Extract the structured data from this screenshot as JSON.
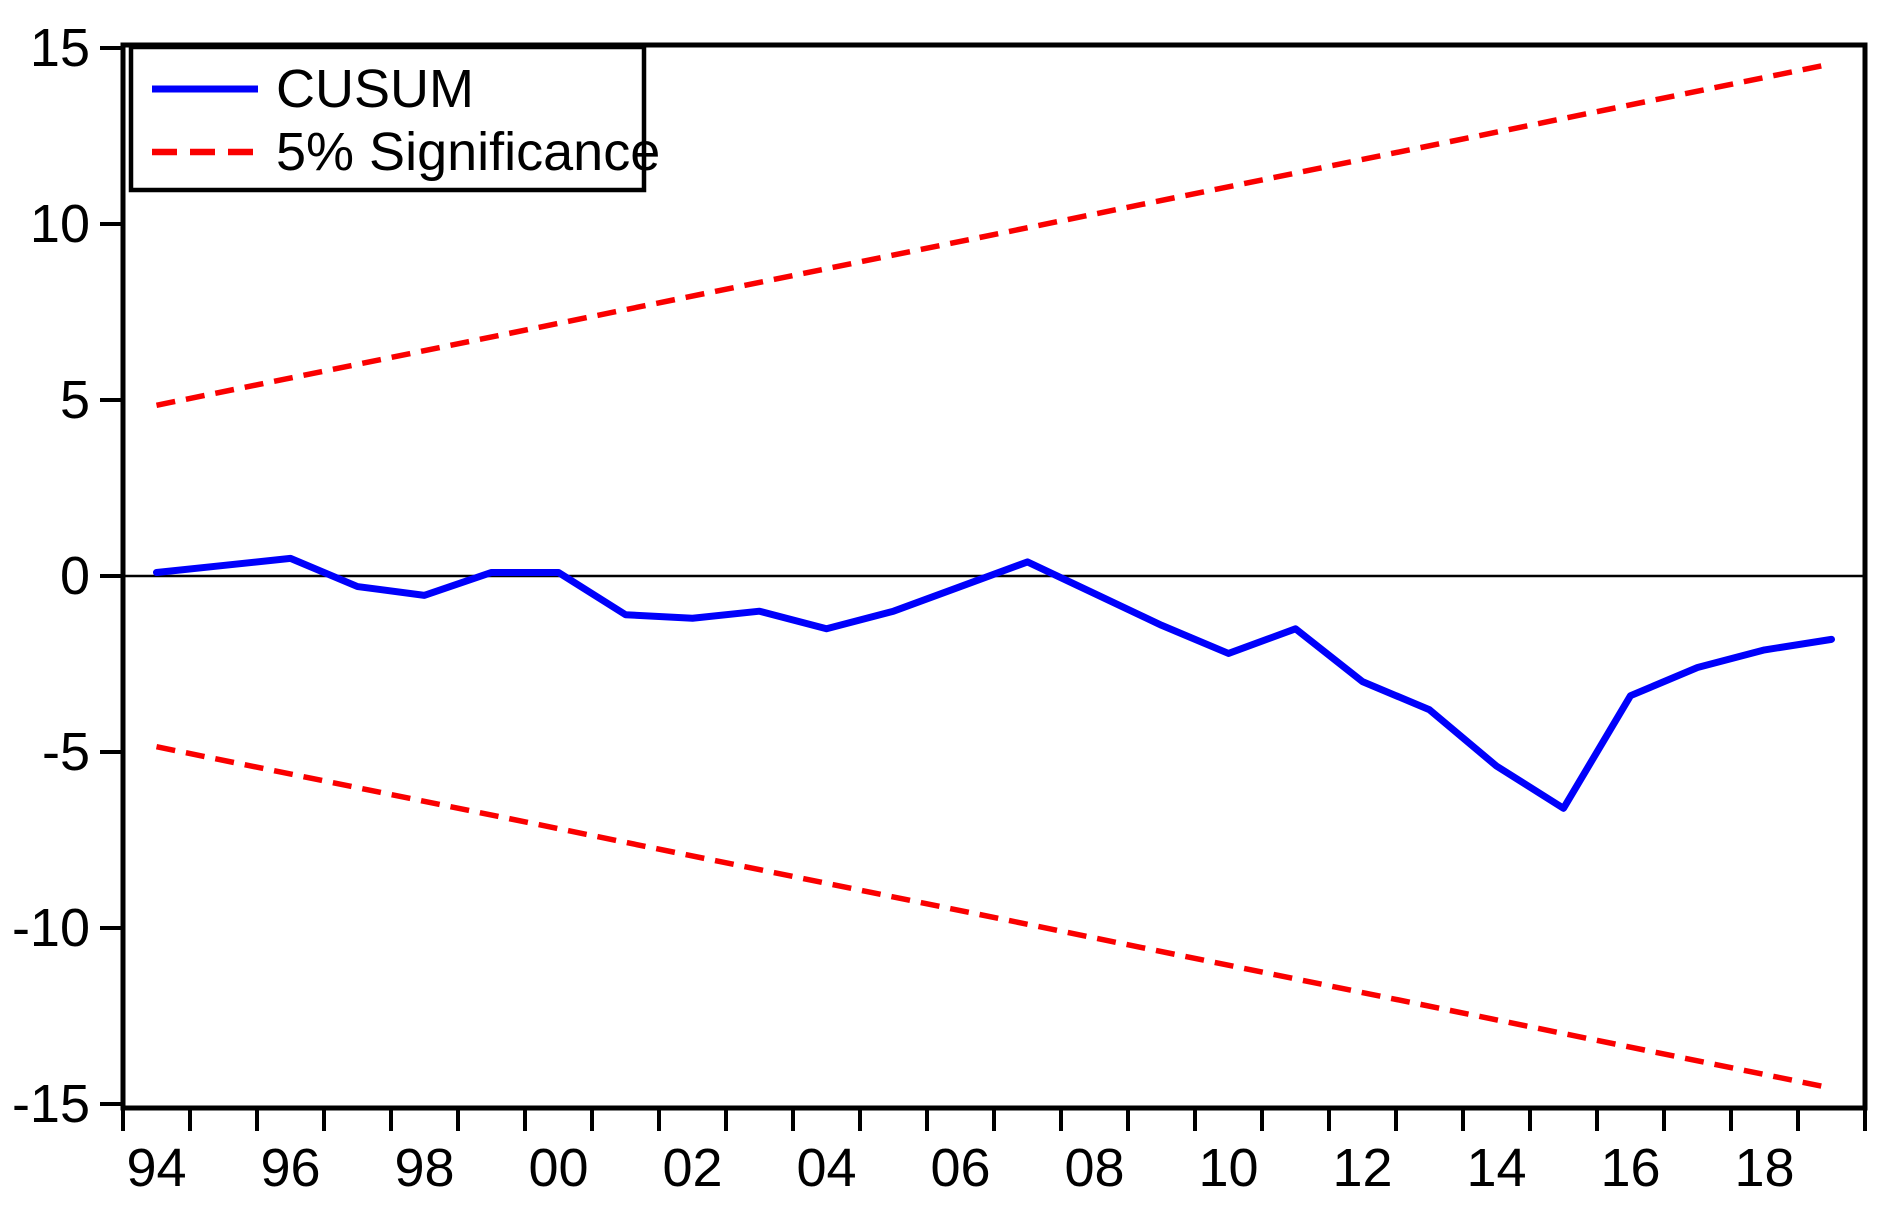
{
  "page": {
    "background_color": "#ffffff",
    "frame_color": "#000000"
  },
  "chart_data": {
    "type": "line",
    "title": "",
    "xlabel": "",
    "ylabel": "",
    "ylim": [
      -15,
      15
    ],
    "yticks": [
      15,
      10,
      5,
      0,
      -5,
      -10,
      -15
    ],
    "ytick_labels": [
      "15",
      "10",
      "5",
      "0",
      "-5",
      "-10",
      "-15"
    ],
    "x_years": [
      1994,
      1995,
      1996,
      1997,
      1998,
      1999,
      2000,
      2001,
      2002,
      2003,
      2004,
      2005,
      2006,
      2007,
      2008,
      2009,
      2010,
      2011,
      2012,
      2013,
      2014,
      2015,
      2016,
      2017,
      2018,
      2019
    ],
    "xtick_years_labeled": [
      1994,
      1996,
      1998,
      2000,
      2002,
      2004,
      2006,
      2008,
      2010,
      2012,
      2014,
      2016,
      2018
    ],
    "xtick_labels": [
      "94",
      "96",
      "98",
      "00",
      "02",
      "04",
      "06",
      "08",
      "10",
      "12",
      "14",
      "16",
      "18"
    ],
    "grid": false,
    "zero_line": 0,
    "legend_position": "top-left-inside",
    "series": [
      {
        "name": "CUSUM",
        "color": "#0000fb",
        "line_style": "solid",
        "x": [
          1994,
          1995,
          1996,
          1997,
          1998,
          1999,
          2000,
          2001,
          2002,
          2003,
          2004,
          2005,
          2006,
          2007,
          2008,
          2009,
          2010,
          2011,
          2012,
          2013,
          2014,
          2015,
          2016,
          2017,
          2018,
          2019
        ],
        "y": [
          0.1,
          0.3,
          0.5,
          -0.3,
          -0.55,
          0.1,
          0.1,
          -1.1,
          -1.2,
          -1.0,
          -1.5,
          -1.0,
          -0.3,
          0.4,
          -0.5,
          -1.4,
          -2.2,
          -1.5,
          -3.0,
          -3.8,
          -5.4,
          -6.6,
          -3.4,
          -2.6,
          -2.1,
          -1.8
        ]
      },
      {
        "name": "5% Significance",
        "color": "#fa0000",
        "line_style": "dashed",
        "upper_bound": {
          "x": [
            1994,
            2019
          ],
          "y": [
            4.85,
            14.55
          ]
        },
        "lower_bound": {
          "x": [
            1994,
            2019
          ],
          "y": [
            -4.85,
            -14.55
          ]
        }
      }
    ]
  },
  "legend": {
    "items": [
      {
        "label": "CUSUM",
        "sample": "solid-blue-line"
      },
      {
        "label": "5% Significance",
        "sample": "dashed-red-line"
      }
    ]
  }
}
